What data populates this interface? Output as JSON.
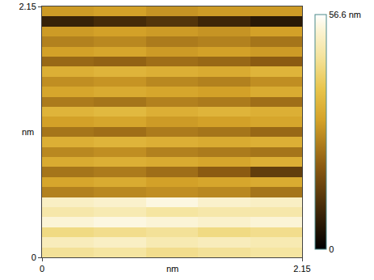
{
  "chart_data": {
    "type": "heatmap",
    "x_label": "nm",
    "y_label": "nm",
    "xlim": [
      0,
      2.15
    ],
    "ylim": [
      0,
      2.15
    ],
    "xticks": [
      0,
      2.15
    ],
    "yticks": [
      0,
      2.15
    ],
    "x": [
      0.215,
      0.645,
      1.075,
      1.505,
      1.935
    ],
    "y": [
      0.043,
      0.129,
      0.215,
      0.301,
      0.387,
      0.473,
      0.559,
      0.645,
      0.731,
      0.817,
      0.903,
      0.989,
      1.075,
      1.161,
      1.247,
      1.333,
      1.419,
      1.505,
      1.591,
      1.677,
      1.763,
      1.849,
      1.935,
      2.021,
      2.107
    ],
    "z": [
      [
        46,
        47,
        45,
        46,
        47
      ],
      [
        50,
        51,
        49,
        50,
        49
      ],
      [
        44,
        45,
        46,
        44,
        45
      ],
      [
        53,
        54,
        53,
        52,
        53
      ],
      [
        48,
        49,
        47,
        48,
        48
      ],
      [
        51,
        52,
        54,
        52,
        51
      ],
      [
        26,
        27,
        28,
        27,
        24
      ],
      [
        32,
        33,
        31,
        32,
        33
      ],
      [
        24,
        25,
        23,
        20,
        14
      ],
      [
        33,
        34,
        33,
        32,
        34
      ],
      [
        27,
        28,
        26,
        25,
        24
      ],
      [
        34,
        35,
        34,
        33,
        34
      ],
      [
        24,
        23,
        25,
        24,
        22
      ],
      [
        31,
        32,
        30,
        31,
        32
      ],
      [
        35,
        36,
        34,
        35,
        34
      ],
      [
        25,
        24,
        26,
        25,
        23
      ],
      [
        32,
        33,
        32,
        31,
        33
      ],
      [
        28,
        29,
        27,
        26,
        28
      ],
      [
        34,
        35,
        34,
        33,
        35
      ],
      [
        22,
        21,
        23,
        22,
        20
      ],
      [
        31,
        32,
        30,
        31,
        30
      ],
      [
        26,
        27,
        25,
        26,
        24
      ],
      [
        30,
        31,
        30,
        29,
        31
      ],
      [
        8,
        10,
        12,
        9,
        6
      ],
      [
        30,
        31,
        29,
        30,
        30
      ]
    ],
    "zlim": [
      0,
      56.6
    ],
    "zticks": [
      0,
      {
        "value": 56.6,
        "label": "56.6 nm"
      }
    ]
  }
}
